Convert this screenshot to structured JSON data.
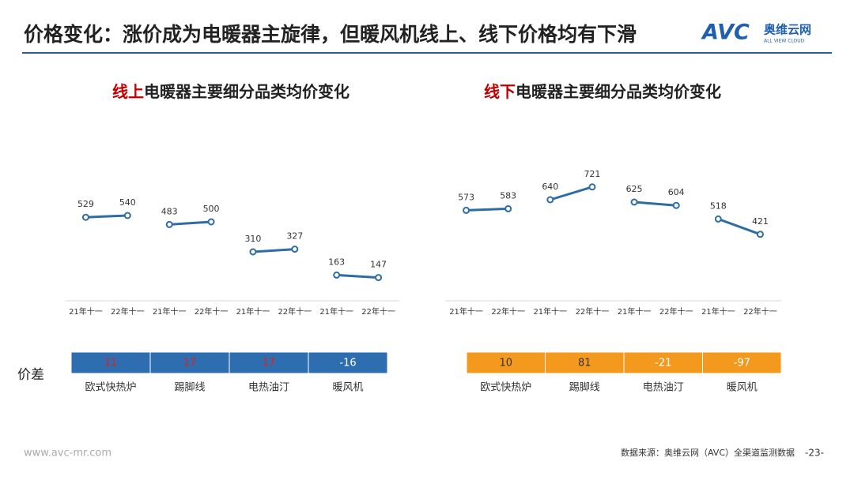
{
  "title": "价格变化：涨价成为电暖器主旋律，但暖风机线上、线下价格均有下滑",
  "logo": {
    "mark": "AVC",
    "name": "奥维云网",
    "sub": "ALL VIEW CLOUD"
  },
  "diff_label": "价差",
  "footer": {
    "site": "www.avc-mr.com",
    "source": "数据来源：奥维云网（AVC）全渠道监测数据",
    "page": "-23-"
  },
  "chart_data": [
    {
      "type": "line",
      "title_highlight": "线上",
      "title": "电暖器主要细分品类均价变化",
      "highlight_color": "#c00000",
      "categories": [
        "21年十一",
        "22年十一",
        "21年十一",
        "22年十一",
        "21年十一",
        "22年十一",
        "21年十一",
        "22年十一"
      ],
      "ylim": [
        0,
        1000
      ],
      "line_color": "#2e6ca4",
      "table_color": "#2e6db0",
      "diff_positive_color": "#e02020",
      "diff_negative_color": "#ffffff",
      "series": [
        {
          "name": "欧式快热炉",
          "values": [
            529,
            540,
            null,
            null,
            null,
            null,
            null,
            null
          ],
          "diff": 11
        },
        {
          "name": "踢脚线",
          "values": [
            null,
            null,
            483,
            500,
            null,
            null,
            null,
            null
          ],
          "diff": 17
        },
        {
          "name": "电热油汀",
          "values": [
            null,
            null,
            null,
            null,
            310,
            327,
            null,
            null
          ],
          "diff": 17
        },
        {
          "name": "暖风机",
          "values": [
            null,
            null,
            null,
            null,
            null,
            null,
            163,
            147
          ],
          "diff": -16
        }
      ]
    },
    {
      "type": "line",
      "title_highlight": "线下",
      "title": "电暖器主要细分品类均价变化",
      "highlight_color": "#c00000",
      "categories": [
        "21年十一",
        "22年十一",
        "21年十一",
        "22年十一",
        "21年十一",
        "22年十一",
        "21年十一",
        "22年十一"
      ],
      "ylim": [
        0,
        1000
      ],
      "line_color": "#2e6ca4",
      "table_color": "#f39a1e",
      "diff_positive_color": "#333333",
      "diff_negative_color": "#ffffff",
      "series": [
        {
          "name": "欧式快热炉",
          "values": [
            573,
            583,
            null,
            null,
            null,
            null,
            null,
            null
          ],
          "diff": 10
        },
        {
          "name": "踢脚线",
          "values": [
            null,
            null,
            640,
            721,
            null,
            null,
            null,
            null
          ],
          "diff": 81
        },
        {
          "name": "电热油汀",
          "values": [
            null,
            null,
            null,
            null,
            625,
            604,
            null,
            null
          ],
          "diff": -21
        },
        {
          "name": "暖风机",
          "values": [
            null,
            null,
            null,
            null,
            null,
            null,
            518,
            421
          ],
          "diff": -97
        }
      ]
    }
  ]
}
